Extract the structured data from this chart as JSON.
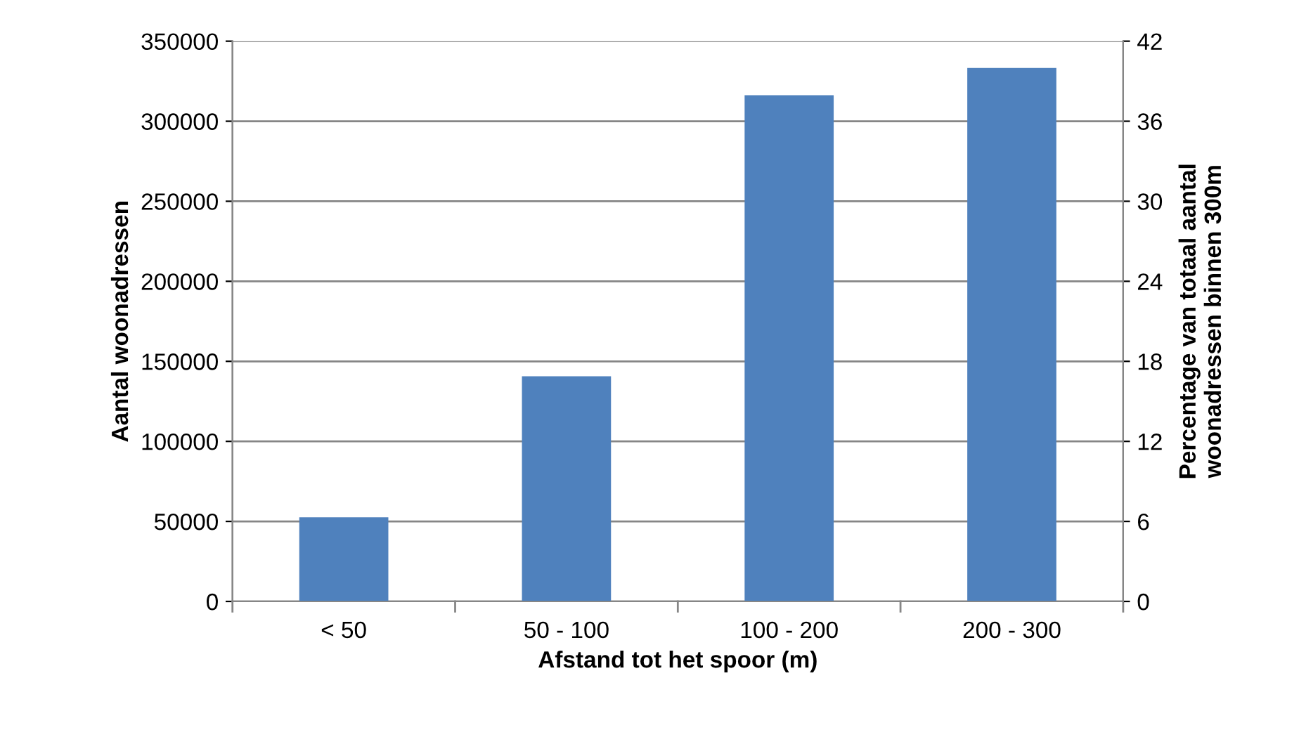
{
  "chart_data": {
    "type": "bar",
    "xlabel": "Afstand tot het spoor (m)",
    "ylabel": "Aantal woonadressen",
    "y2label": "Percentage van totaal aantal\nwoonadressen binnen 300m",
    "categories": [
      "< 50",
      "50 - 100",
      "100 - 200",
      "200 - 300"
    ],
    "values": [
      52600,
      140700,
      316300,
      333300
    ],
    "color": "#4f81bd",
    "ylim": [
      0,
      350000
    ],
    "yticks": [
      0,
      50000,
      100000,
      150000,
      200000,
      250000,
      300000,
      350000
    ],
    "y2lim": [
      0,
      42
    ],
    "y2ticks": [
      0,
      6,
      12,
      18,
      24,
      30,
      36,
      42
    ],
    "grid": "y"
  }
}
